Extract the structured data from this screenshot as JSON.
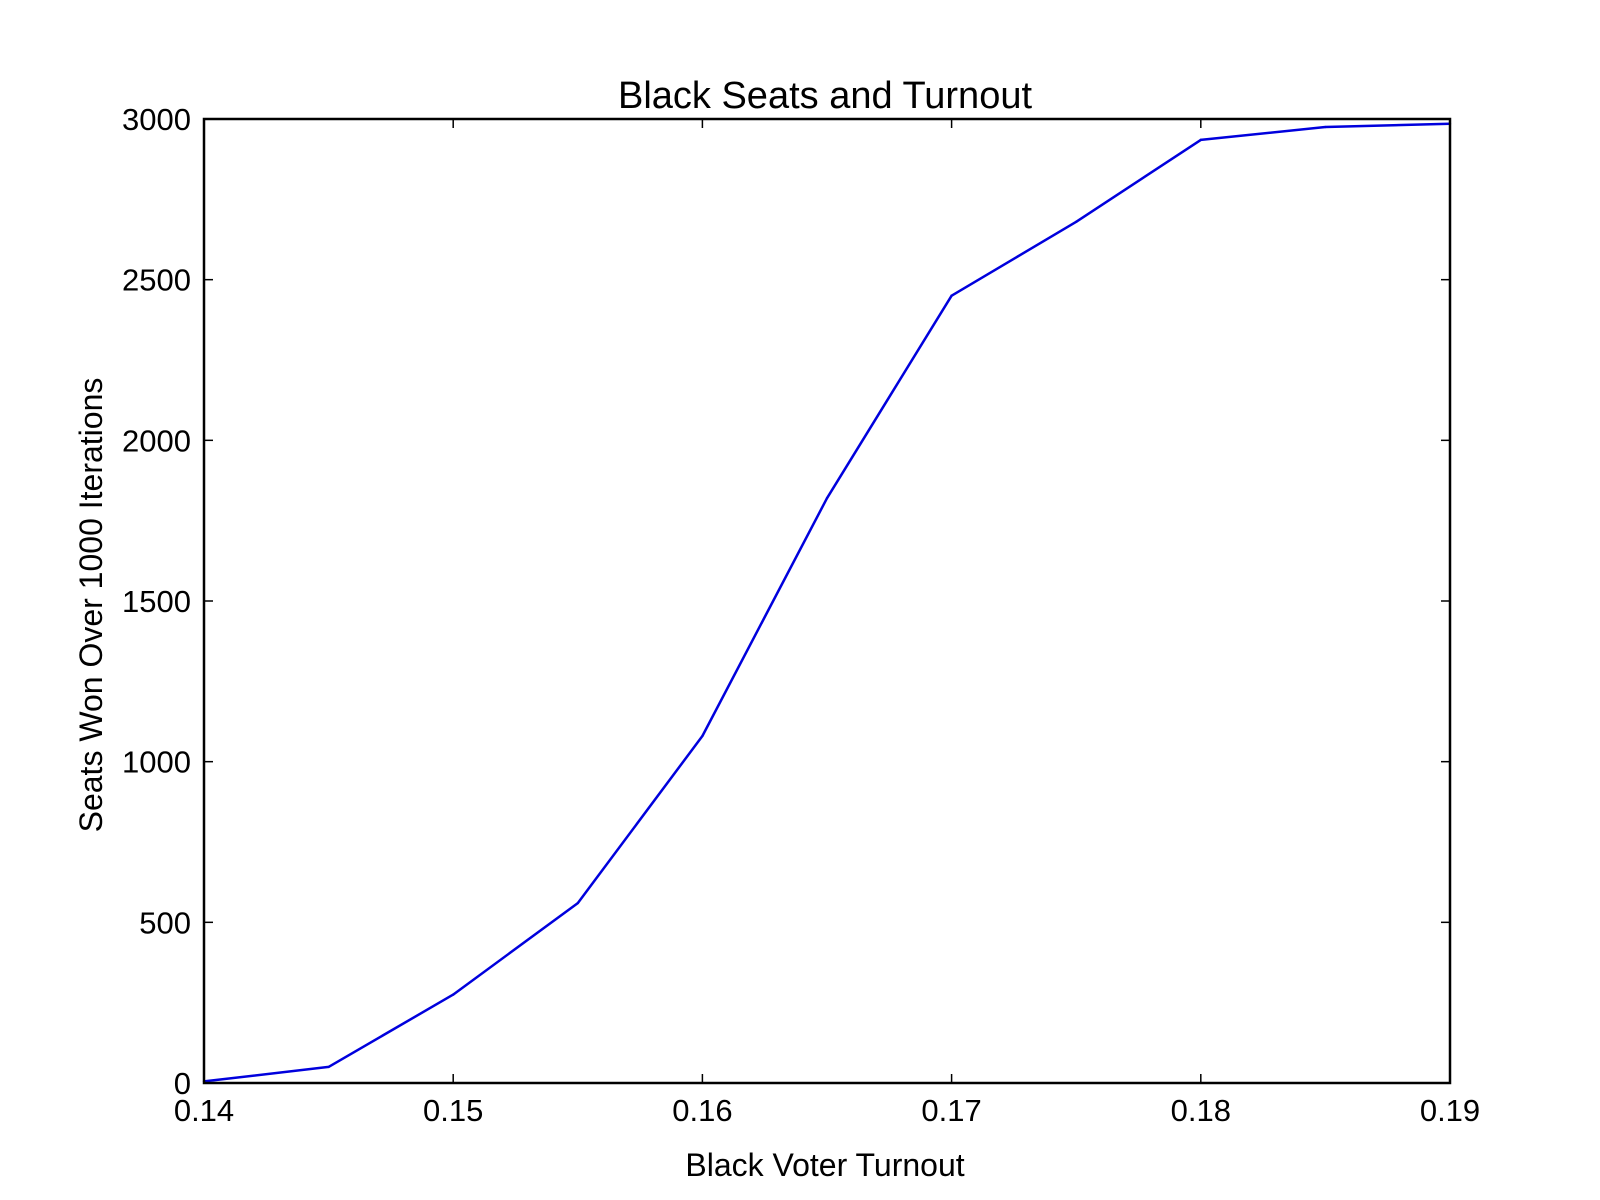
{
  "chart_data": {
    "type": "line",
    "title": "Black Seats and Turnout",
    "xlabel": "Black Voter Turnout",
    "ylabel": "Seats Won Over 1000 Iterations",
    "xlim": [
      0.14,
      0.19
    ],
    "ylim": [
      0,
      3000
    ],
    "xticks": [
      "0.14",
      "0.15",
      "0.16",
      "0.17",
      "0.18",
      "0.19"
    ],
    "yticks": [
      "0",
      "500",
      "1000",
      "1500",
      "2000",
      "2500",
      "3000"
    ],
    "grid": false,
    "legend": "none",
    "series": [
      {
        "color": "#0000dd",
        "x": [
          0.14,
          0.145,
          0.15,
          0.155,
          0.16,
          0.165,
          0.17,
          0.175,
          0.18,
          0.185,
          0.19
        ],
        "y": [
          5,
          50,
          275,
          560,
          1080,
          1820,
          2450,
          2680,
          2935,
          2975,
          2985
        ]
      }
    ]
  }
}
